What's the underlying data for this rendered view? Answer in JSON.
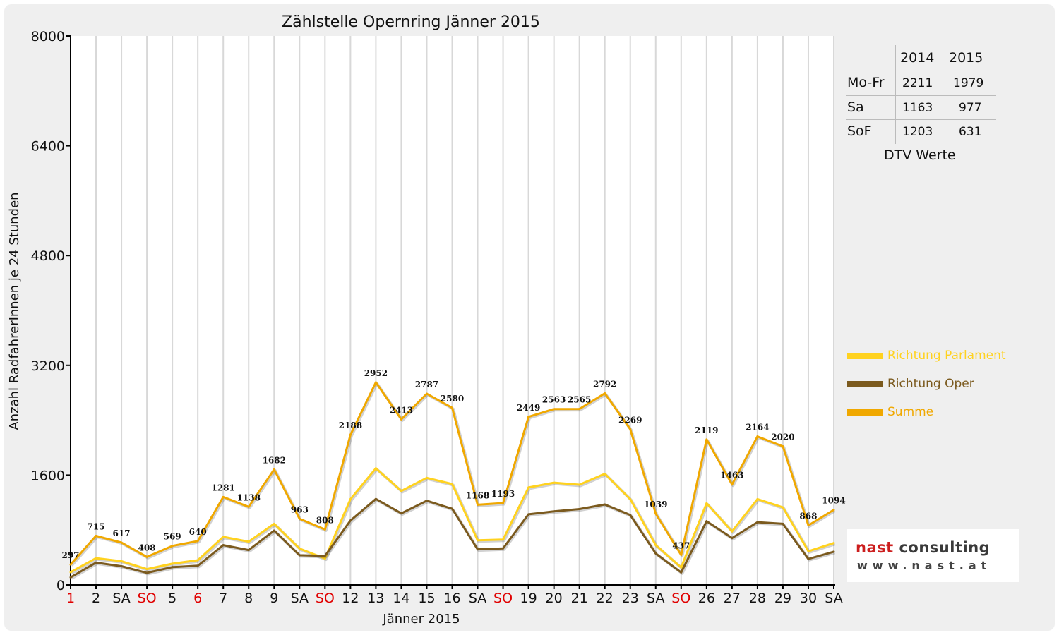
{
  "chart_data": {
    "type": "line",
    "title": "Zählstelle Opernring Jänner 2015",
    "xlabel": "Jänner 2015",
    "ylabel": "Anzahl RadfahrerInnen je 24 Stunden",
    "ylim": [
      0,
      8000
    ],
    "yticks": [
      "0",
      "1600",
      "3200",
      "4800",
      "6400",
      "8000"
    ],
    "categories": [
      "1",
      "2",
      "SA",
      "SO",
      "5",
      "6",
      "7",
      "8",
      "9",
      "SA",
      "SO",
      "12",
      "13",
      "14",
      "15",
      "16",
      "SA",
      "SO",
      "19",
      "20",
      "21",
      "22",
      "23",
      "SA",
      "SO",
      "26",
      "27",
      "28",
      "29",
      "30",
      "SA"
    ],
    "highlight_categories": [
      0,
      3,
      5,
      10,
      17,
      24
    ],
    "highlight_color": "#e00000",
    "grid": true,
    "series": [
      {
        "name": "Richtung Parlament",
        "color": "#ffd21f",
        "values": [
          185,
          390,
          345,
          230,
          310,
          360,
          700,
          630,
          890,
          530,
          385,
          1250,
          1700,
          1370,
          1560,
          1470,
          650,
          660,
          1420,
          1490,
          1460,
          1620,
          1250,
          580,
          255,
          1190,
          780,
          1250,
          1130,
          490,
          610
        ],
        "labels": false
      },
      {
        "name": "Richtung Oper",
        "color": "#7b5a1e",
        "values": [
          110,
          325,
          272,
          176,
          259,
          280,
          580,
          508,
          792,
          433,
          423,
          938,
          1252,
          1043,
          1227,
          1110,
          518,
          533,
          1029,
          1073,
          1105,
          1172,
          1019,
          459,
          182,
          929,
          683,
          914,
          890,
          378,
          484
        ],
        "labels": false
      },
      {
        "name": "Summe",
        "color": "#f0a800",
        "values": [
          297,
          715,
          617,
          408,
          569,
          640,
          1281,
          1138,
          1682,
          963,
          808,
          2188,
          2952,
          2413,
          2787,
          2580,
          1168,
          1193,
          2449,
          2563,
          2565,
          2792,
          2269,
          1039,
          437,
          2119,
          1463,
          2164,
          2020,
          868,
          1094
        ],
        "labels": true
      }
    ],
    "dtv_table": {
      "columns": [
        "",
        "2014",
        "2015"
      ],
      "rows": [
        [
          "Mo-Fr",
          "2211",
          "1979"
        ],
        [
          "Sa",
          "1163",
          "977"
        ],
        [
          "SoF",
          "1203",
          "631"
        ]
      ],
      "caption": "DTV Werte"
    },
    "legend_position": "right"
  },
  "logo": {
    "name_part1": "nast",
    "name_part2": "consulting",
    "url": "www.nast.at"
  }
}
